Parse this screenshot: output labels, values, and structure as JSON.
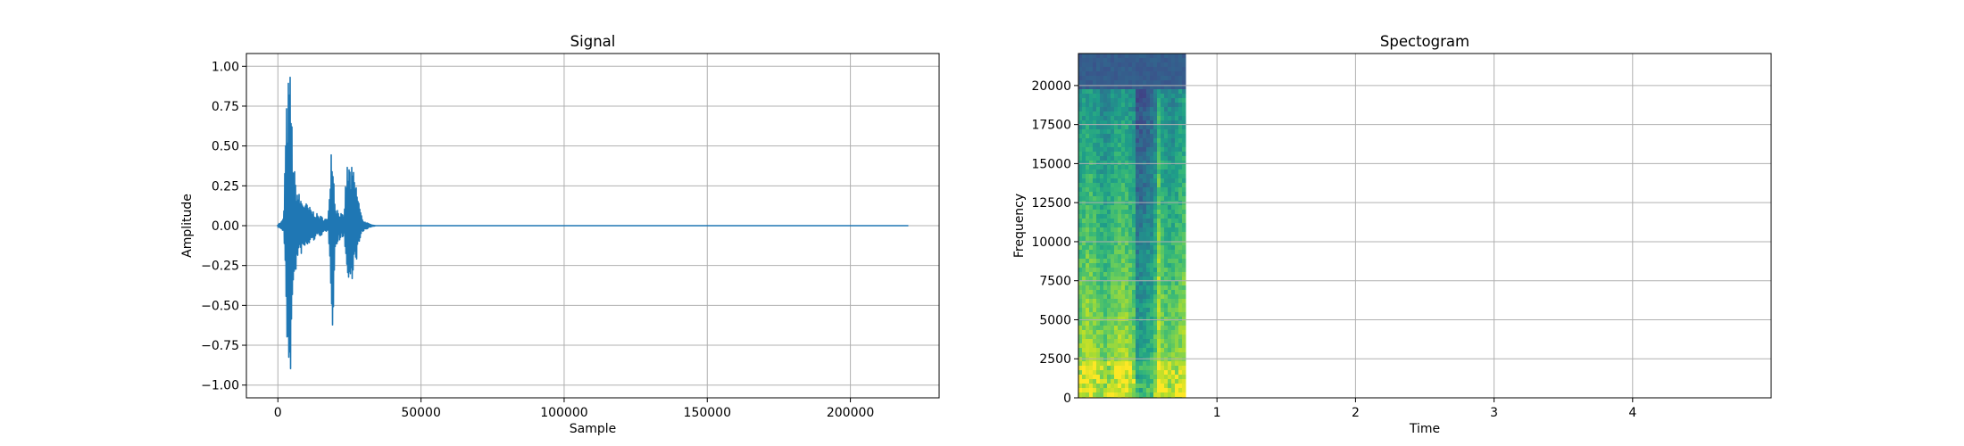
{
  "chart_data": [
    {
      "type": "line",
      "title": "Signal",
      "xlabel": "Sample",
      "ylabel": "Amplitude",
      "xlim": [
        -11000,
        231000
      ],
      "ylim": [
        -1.08,
        1.08
      ],
      "xticks": [
        0,
        50000,
        100000,
        150000,
        200000
      ],
      "xtick_labels": [
        "0",
        "50000",
        "100000",
        "150000",
        "200000"
      ],
      "yticks": [
        -1.0,
        -0.75,
        -0.5,
        -0.25,
        0.0,
        0.25,
        0.5,
        0.75,
        1.0
      ],
      "ytick_labels": [
        "−1.00",
        "−0.75",
        "−0.50",
        "−0.25",
        "0.00",
        "0.25",
        "0.50",
        "0.75",
        "1.00"
      ],
      "grid": true,
      "color": "#1f77b4",
      "series": [
        {
          "envelope_x": [
            0,
            1000,
            2000,
            2500,
            3000,
            3500,
            4000,
            4500,
            5000,
            6000,
            7000,
            8000,
            10000,
            12000,
            14000,
            16000,
            17500,
            18500,
            19000,
            19500,
            20000,
            21000,
            22000,
            23000,
            24000,
            25000,
            25500,
            26000,
            27000,
            28000,
            29000,
            30000,
            32000,
            34000,
            220000
          ],
          "envelope_upper": [
            0.01,
            0.02,
            0.05,
            0.45,
            0.75,
            0.9,
            0.98,
            0.96,
            0.6,
            0.3,
            0.22,
            0.18,
            0.14,
            0.1,
            0.07,
            0.05,
            0.04,
            0.5,
            0.62,
            0.35,
            0.15,
            0.1,
            0.08,
            0.06,
            0.38,
            0.4,
            0.35,
            0.38,
            0.3,
            0.2,
            0.08,
            0.03,
            0.01,
            0.0,
            0.0
          ],
          "envelope_lower": [
            -0.01,
            -0.02,
            -0.05,
            -0.45,
            -0.75,
            -0.95,
            -0.98,
            -0.9,
            -0.55,
            -0.3,
            -0.22,
            -0.18,
            -0.14,
            -0.1,
            -0.07,
            -0.05,
            -0.04,
            -0.45,
            -0.68,
            -0.35,
            -0.15,
            -0.1,
            -0.08,
            -0.06,
            -0.35,
            -0.42,
            -0.38,
            -0.3,
            -0.25,
            -0.15,
            -0.06,
            -0.03,
            -0.01,
            0.0,
            0.0
          ]
        }
      ]
    },
    {
      "type": "heatmap",
      "title": "Spectogram",
      "xlabel": "Time",
      "ylabel": "Frequency",
      "xlim": [
        0,
        5.0
      ],
      "ylim": [
        0,
        22050
      ],
      "xticks": [
        1,
        2,
        3,
        4
      ],
      "xtick_labels": [
        "1",
        "2",
        "3",
        "4"
      ],
      "yticks": [
        0,
        2500,
        5000,
        7500,
        10000,
        12500,
        15000,
        17500,
        20000
      ],
      "ytick_labels": [
        "0",
        "2500",
        "5000",
        "7500",
        "10000",
        "12500",
        "15000",
        "17500",
        "20000"
      ],
      "grid": true,
      "colormap": "viridis",
      "data_extent_x": [
        0,
        0.76
      ],
      "cutoff_frequency": 20000,
      "dark_bands_time": [
        0.44,
        0.52
      ],
      "bright_band_time": 0.55
    }
  ]
}
